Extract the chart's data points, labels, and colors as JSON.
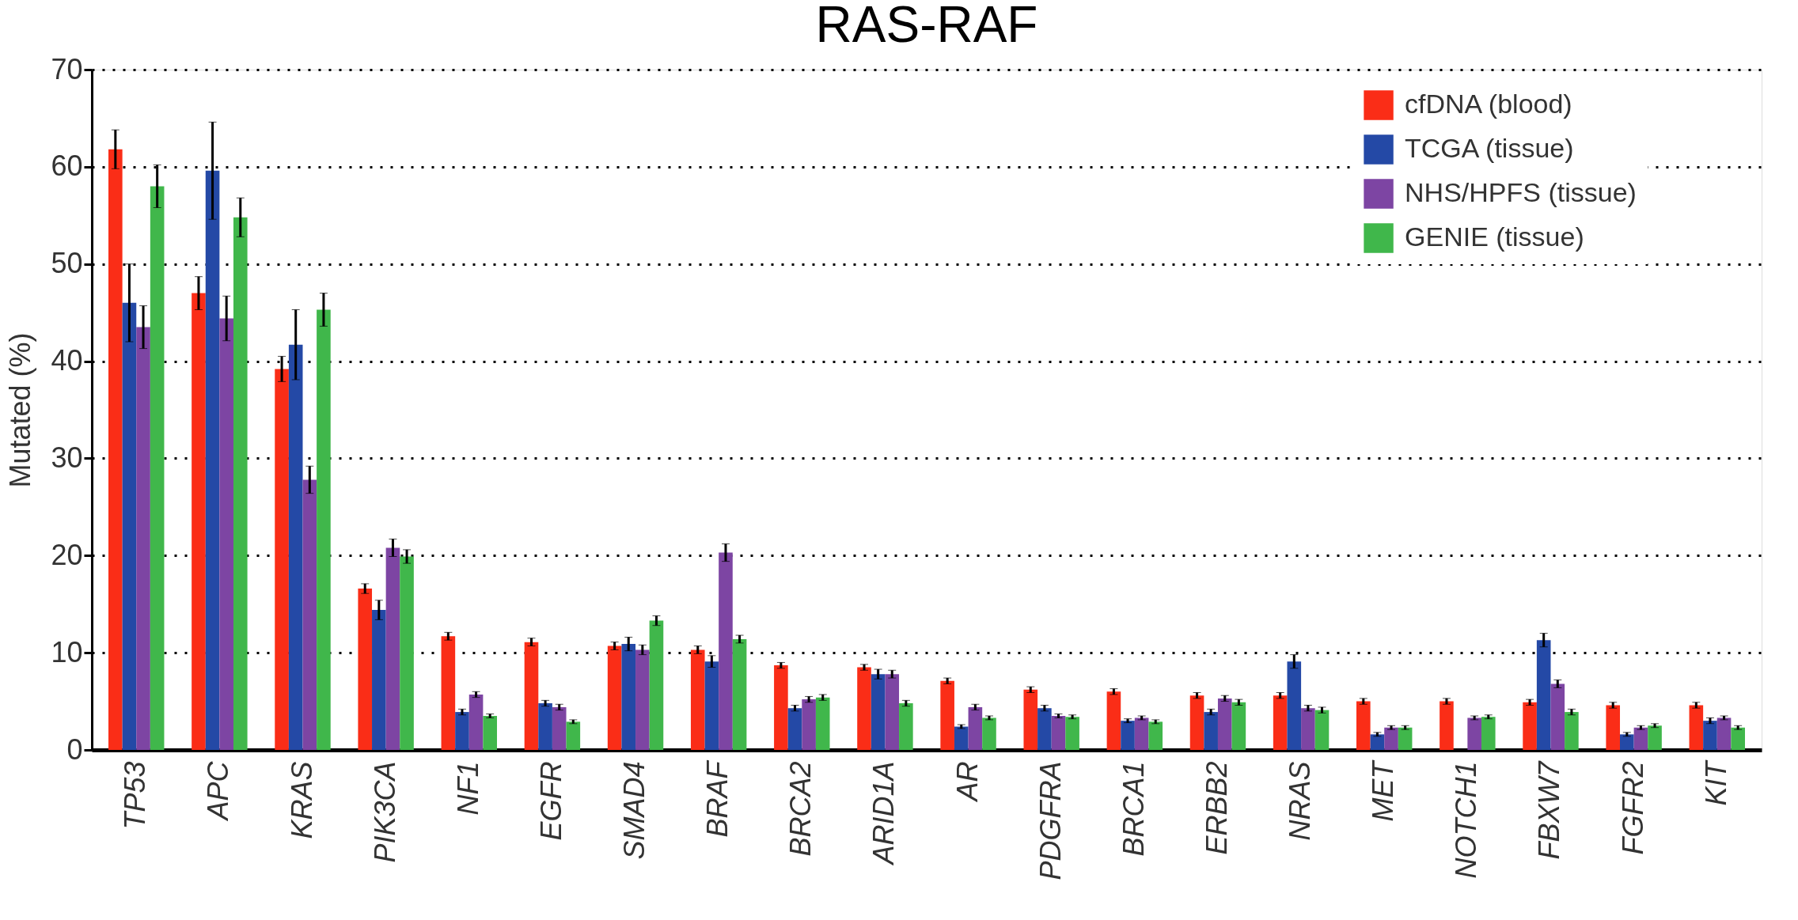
{
  "chart_data": {
    "type": "bar",
    "title": "RAS-RAF",
    "ylabel": "Mutated (%)",
    "categories": [
      "TP53",
      "APC",
      "KRAS",
      "PIK3CA",
      "NF1",
      "EGFR",
      "SMAD4",
      "BRAF",
      "BRCA2",
      "ARID1A",
      "AR",
      "PDGFRA",
      "BRCA1",
      "ERBB2",
      "NRAS",
      "MET",
      "NOTCH1",
      "FBXW7",
      "FGFR2",
      "KIT"
    ],
    "series": [
      {
        "name": "cfDNA (blood)",
        "color": "#fa2d17",
        "values": [
          61.8,
          47,
          39.2,
          16.6,
          11.7,
          11.1,
          10.7,
          10.3,
          8.7,
          8.5,
          7.1,
          6.2,
          6.0,
          5.6,
          5.6,
          5.0,
          5.0,
          4.9,
          4.6,
          4.6
        ],
        "errors": [
          2,
          1.7,
          1.3,
          0.5,
          0.4,
          0.4,
          0.4,
          0.4,
          0.3,
          0.3,
          0.3,
          0.3,
          0.3,
          0.3,
          0.3,
          0.3,
          0.3,
          0.3,
          0.3,
          0.3
        ]
      },
      {
        "name": "TCGA (tissue)",
        "color": "#2449a6",
        "values": [
          46,
          59.6,
          41.7,
          14.4,
          3.9,
          4.8,
          10.9,
          9.1,
          4.3,
          7.8,
          2.4,
          4.3,
          3.0,
          3.9,
          9.1,
          1.6,
          null,
          11.3,
          1.6,
          3.0
        ],
        "errors": [
          4,
          5,
          3.6,
          1,
          0.3,
          0.3,
          0.7,
          0.6,
          0.3,
          0.5,
          0.2,
          0.3,
          0.2,
          0.3,
          0.7,
          0.2,
          null,
          0.7,
          0.2,
          0.3
        ]
      },
      {
        "name": "NHS/HPFS (tissue)",
        "color": "#7d45a3",
        "values": [
          43.5,
          44.4,
          27.8,
          20.8,
          5.7,
          4.4,
          10.3,
          20.3,
          5.2,
          7.8,
          4.4,
          3.5,
          3.3,
          5.3,
          4.3,
          2.3,
          3.3,
          6.8,
          2.3,
          3.3
        ],
        "errors": [
          2.2,
          2.3,
          1.4,
          0.9,
          0.3,
          0.3,
          0.5,
          0.9,
          0.3,
          0.4,
          0.3,
          0.2,
          0.2,
          0.3,
          0.3,
          0.2,
          0.2,
          0.4,
          0.2,
          0.2
        ]
      },
      {
        "name": "GENIE (tissue)",
        "color": "#40b74b",
        "values": [
          58,
          54.8,
          45.3,
          19.9,
          3.5,
          2.9,
          13.3,
          11.4,
          5.4,
          4.8,
          3.3,
          3.4,
          2.9,
          4.9,
          4.1,
          2.3,
          3.4,
          3.9,
          2.5,
          2.3
        ],
        "errors": [
          2.2,
          2,
          1.7,
          0.7,
          0.2,
          0.2,
          0.5,
          0.4,
          0.3,
          0.3,
          0.2,
          0.2,
          0.2,
          0.3,
          0.3,
          0.2,
          0.2,
          0.3,
          0.2,
          0.2
        ]
      }
    ],
    "ylim": [
      0,
      70
    ],
    "yticks": [
      0,
      10,
      20,
      30,
      40,
      50,
      60,
      70
    ],
    "grid": "y",
    "legend": "top right"
  }
}
